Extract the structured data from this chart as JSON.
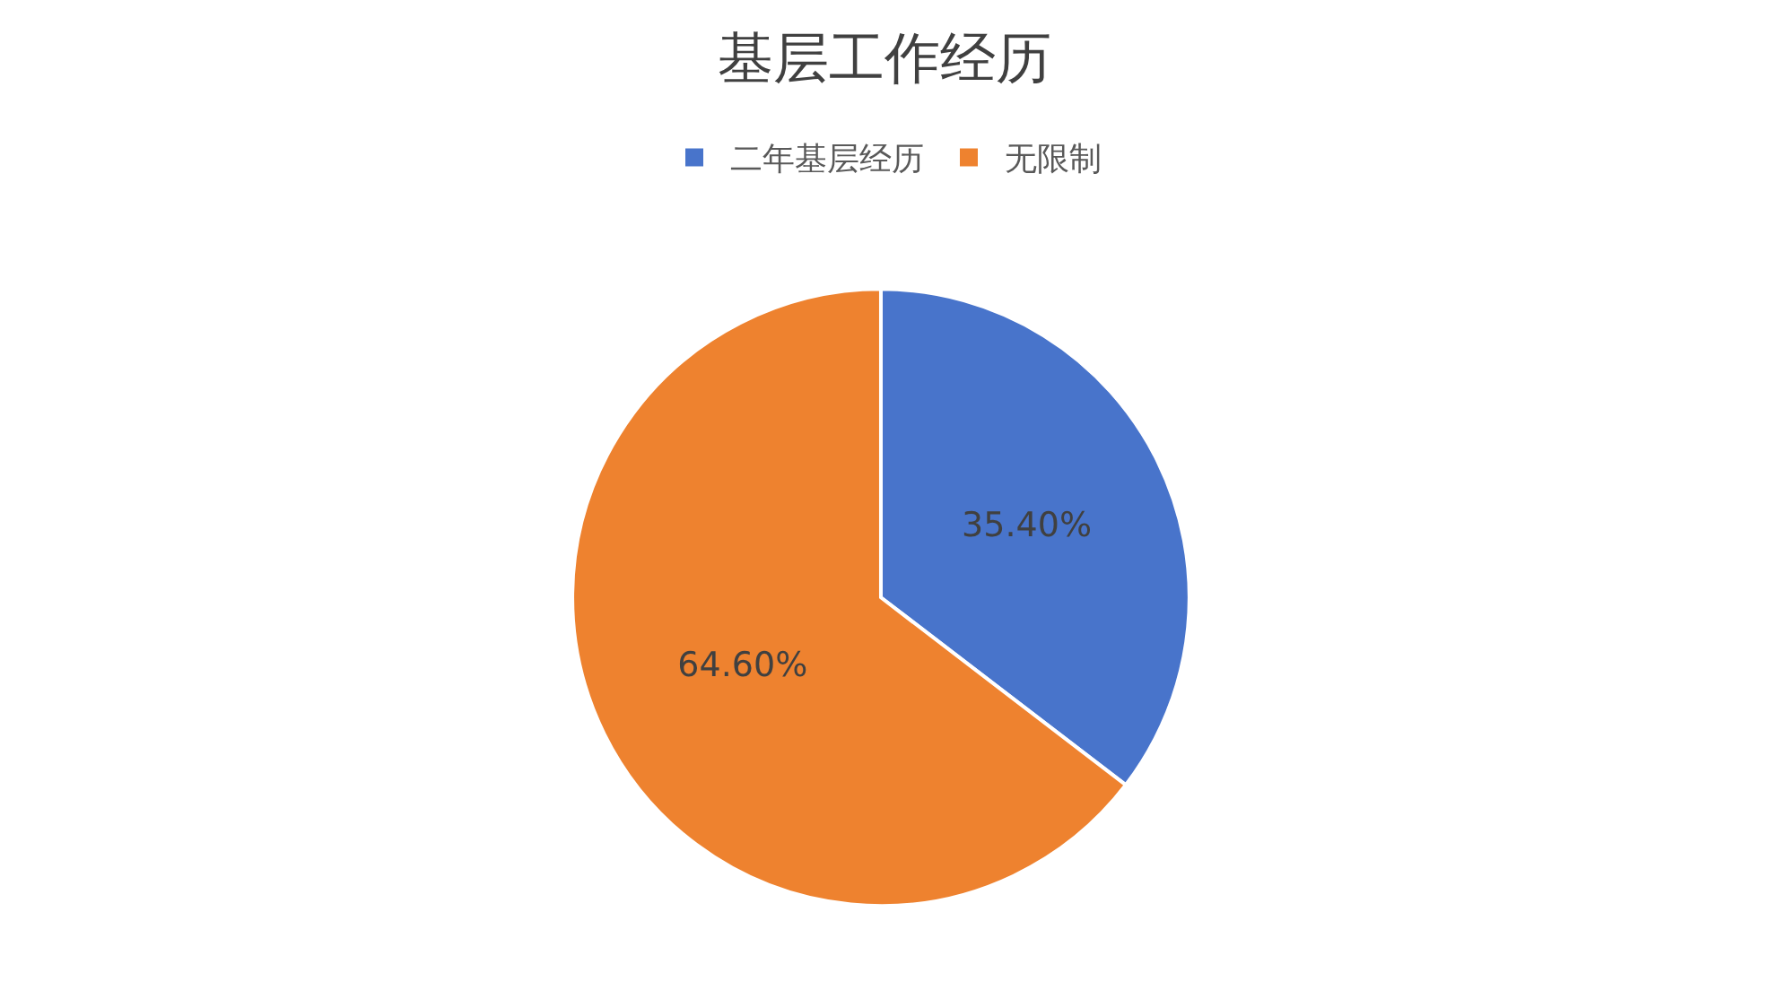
{
  "chart_data": {
    "type": "pie",
    "title": "基层工作经历",
    "categories": [
      "二年基层经历",
      "无限制"
    ],
    "values": [
      35.4,
      64.6
    ],
    "colors": [
      "#4874cb",
      "#ee822f"
    ],
    "value_labels": [
      "35.40%",
      "64.60%"
    ],
    "legend": "top"
  }
}
